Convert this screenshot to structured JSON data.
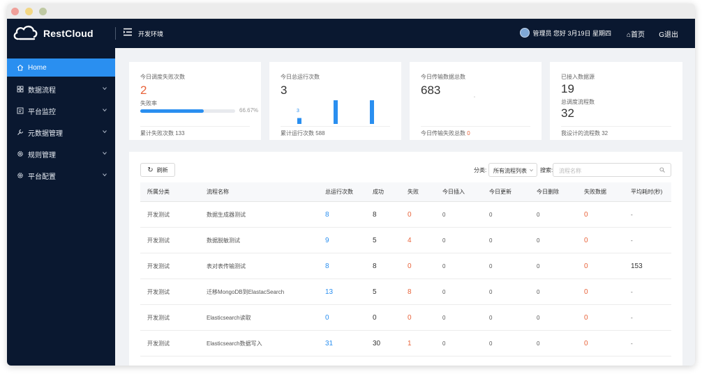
{
  "app": {
    "name": "RestCloud",
    "environment": "开发环境"
  },
  "header": {
    "user_text": "管理员 您好 3月19日 星期四",
    "home_label": "首页",
    "logout_label": "退出"
  },
  "sidebar": {
    "items": [
      {
        "label": "Home",
        "icon": "home-icon",
        "active": true
      },
      {
        "label": "数据流程",
        "icon": "grid-icon"
      },
      {
        "label": "平台监控",
        "icon": "monitor-icon"
      },
      {
        "label": "元数据管理",
        "icon": "wrench-icon"
      },
      {
        "label": "规则管理",
        "icon": "gear-icon"
      },
      {
        "label": "平台配置",
        "icon": "settings-icon"
      }
    ]
  },
  "cards": [
    {
      "label": "今日调度失败次数",
      "value": "2",
      "sub_label": "失败率",
      "progress_text": "66.67%",
      "progress": 0.6667,
      "footer": "累计失败次数 133"
    },
    {
      "label": "今日总运行次数",
      "value": "3",
      "footer": "累计运行次数 588",
      "mini_bar_label": "3",
      "mini_bars": [
        0.25,
        1.0,
        1.0
      ]
    },
    {
      "label": "今日传输数据总数",
      "value": "683",
      "footer_prefix": "今日传输失败总数",
      "footer_value": "0"
    },
    {
      "label": "已接入数据源",
      "value": "19",
      "label2": "总调度流程数",
      "value2": "32",
      "footer": "我设计的流程数 32"
    }
  ],
  "toolbar": {
    "refresh_label": "刷新",
    "category_label": "分类:",
    "category_value": "所有流程列表",
    "search_label": "搜索:",
    "search_placeholder": "流程名称"
  },
  "table": {
    "columns": [
      "所属分类",
      "流程名称",
      "总运行次数",
      "成功",
      "失败",
      "今日插入",
      "今日更新",
      "今日删除",
      "失败数据",
      "平均耗时(秒)"
    ],
    "rows": [
      [
        "开发测试",
        "数据生成器测试",
        "8",
        "8",
        "0",
        "0",
        "0",
        "0",
        "0",
        "-"
      ],
      [
        "开发测试",
        "数据脱敏测试",
        "9",
        "5",
        "4",
        "0",
        "0",
        "0",
        "0",
        "-"
      ],
      [
        "开发测试",
        "表对表传输测试",
        "8",
        "8",
        "0",
        "0",
        "0",
        "0",
        "0",
        "153"
      ],
      [
        "开发测试",
        "迁移MongoDB到ElastacSearch",
        "13",
        "5",
        "8",
        "0",
        "0",
        "0",
        "0",
        "-"
      ],
      [
        "开发测试",
        "Elasticsearch读取",
        "0",
        "0",
        "0",
        "0",
        "0",
        "0",
        "0",
        "-"
      ],
      [
        "开发测试",
        "Elasticsearch数据写入",
        "31",
        "30",
        "1",
        "0",
        "0",
        "0",
        "0",
        "-"
      ]
    ]
  },
  "colors": {
    "sidebar_bg": "#0a1830",
    "accent": "#2a8ff0",
    "danger": "#e8633a"
  }
}
